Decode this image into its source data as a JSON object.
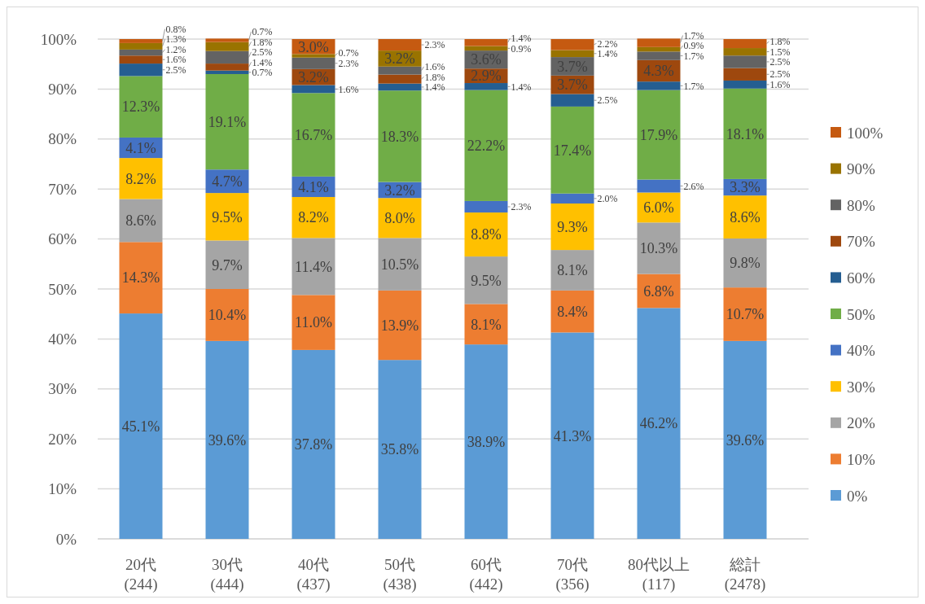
{
  "chart_data": {
    "type": "bar",
    "stacked": true,
    "categories": [
      "20代\n(244)",
      "30代\n(444)",
      "40代\n(437)",
      "50代\n(438)",
      "60代\n(442)",
      "70代\n(356)",
      "80代以上\n(117)",
      "総計\n(2478)"
    ],
    "ylim": [
      0,
      100
    ],
    "yticks": [
      {
        "value": 0,
        "label": "0%"
      },
      {
        "value": 10,
        "label": "10%"
      },
      {
        "value": 20,
        "label": "20%"
      },
      {
        "value": 30,
        "label": "30%"
      },
      {
        "value": 40,
        "label": "40%"
      },
      {
        "value": 50,
        "label": "50%"
      },
      {
        "value": 60,
        "label": "60%"
      },
      {
        "value": 70,
        "label": "70%"
      },
      {
        "value": 80,
        "label": "80%"
      },
      {
        "value": 90,
        "label": "90%"
      },
      {
        "value": 100,
        "label": "100%"
      }
    ],
    "grid": "y",
    "legend": "right",
    "series": [
      {
        "name": "0%",
        "color": "#5b9bd5",
        "values": [
          45.1,
          39.6,
          37.8,
          35.8,
          38.9,
          41.3,
          46.2,
          39.6
        ],
        "value_labels": [
          "45.1%",
          "39.6%",
          "37.8%",
          "35.8%",
          "38.9%",
          "41.3%",
          "46.2%",
          "39.6%"
        ]
      },
      {
        "name": "10%",
        "color": "#ed7d31",
        "values": [
          14.3,
          10.4,
          11.0,
          13.9,
          8.1,
          8.4,
          6.8,
          10.7
        ],
        "value_labels": [
          "14.3%",
          "10.4%",
          "11.0%",
          "13.9%",
          "8.1%",
          "8.4%",
          "6.8%",
          "10.7%"
        ]
      },
      {
        "name": "20%",
        "color": "#a5a5a5",
        "values": [
          8.6,
          9.7,
          11.4,
          10.5,
          9.5,
          8.1,
          10.3,
          9.8
        ],
        "value_labels": [
          "8.6%",
          "9.7%",
          "11.4%",
          "10.5%",
          "9.5%",
          "8.1%",
          "10.3%",
          "9.8%"
        ]
      },
      {
        "name": "30%",
        "color": "#ffc000",
        "values": [
          8.2,
          9.5,
          8.2,
          8.0,
          8.8,
          9.3,
          6.0,
          8.6
        ],
        "value_labels": [
          "8.2%",
          "9.5%",
          "8.2%",
          "8.0%",
          "8.8%",
          "9.3%",
          "6.0%",
          "8.6%"
        ]
      },
      {
        "name": "40%",
        "color": "#4472c4",
        "values": [
          4.1,
          4.7,
          4.1,
          3.2,
          2.3,
          2.0,
          2.6,
          3.3
        ],
        "value_labels": [
          "4.1%",
          "4.7%",
          "4.1%",
          "3.2%",
          "2.3%",
          "2.0%",
          "2.6%",
          "3.3%"
        ]
      },
      {
        "name": "50%",
        "color": "#70ad47",
        "values": [
          12.3,
          19.1,
          16.7,
          18.3,
          22.2,
          17.4,
          17.9,
          18.1
        ],
        "value_labels": [
          "12.3%",
          "19.1%",
          "16.7%",
          "18.3%",
          "22.2%",
          "17.4%",
          "17.9%",
          "18.1%"
        ]
      },
      {
        "name": "60%",
        "color": "#255e91",
        "values": [
          2.5,
          0.7,
          1.6,
          1.4,
          1.4,
          2.5,
          1.7,
          1.6
        ],
        "value_labels": [
          "2.5%",
          "0.7%",
          "1.6%",
          "1.4%",
          "1.4%",
          "2.5%",
          "1.7%",
          "1.6%"
        ]
      },
      {
        "name": "70%",
        "color": "#9e480e",
        "values": [
          1.6,
          1.4,
          3.2,
          1.8,
          2.9,
          3.7,
          4.3,
          2.5
        ],
        "value_labels": [
          "1.6%",
          "1.4%",
          "3.2%",
          "1.8%",
          "2.9%",
          "3.7%",
          "4.3%",
          "2.5%"
        ]
      },
      {
        "name": "80%",
        "color": "#636363",
        "values": [
          1.2,
          2.5,
          2.3,
          1.6,
          3.6,
          3.7,
          1.7,
          2.5
        ],
        "value_labels": [
          "1.2%",
          "2.5%",
          "2.3%",
          "1.6%",
          "3.6%",
          "3.7%",
          "1.7%",
          "2.5%"
        ]
      },
      {
        "name": "90%",
        "color": "#997300",
        "values": [
          1.3,
          1.8,
          0.7,
          3.2,
          0.9,
          1.4,
          0.9,
          1.5
        ],
        "value_labels": [
          "1.3%",
          "1.8%",
          "0.7%",
          "3.2%",
          "0.9%",
          "1.4%",
          "0.9%",
          "1.5%"
        ]
      },
      {
        "name": "100%",
        "color": "#c55a11",
        "values": [
          0.8,
          0.7,
          3.0,
          2.3,
          1.4,
          2.2,
          1.7,
          1.8
        ],
        "value_labels": [
          "0.8%",
          "0.7%",
          "3.0%",
          "2.3%",
          "1.4%",
          "2.2%",
          "1.7%",
          "1.8%"
        ]
      }
    ]
  }
}
